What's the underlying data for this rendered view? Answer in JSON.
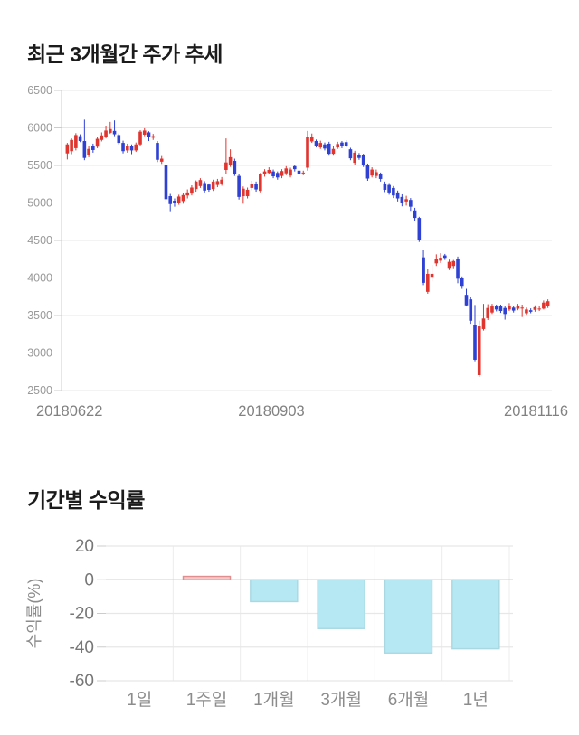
{
  "section_price": {
    "title": "최근 3개월간 주가 추세"
  },
  "section_returns": {
    "title": "기간별 수익률"
  },
  "chart_data": [
    {
      "type": "candlestick",
      "title": "최근 3개월간 주가 추세",
      "ylim": [
        2500,
        6500
      ],
      "y_ticks": [
        6500,
        6000,
        5500,
        5000,
        4500,
        4000,
        3500,
        3000,
        2500
      ],
      "x_labels": [
        "20180622",
        "20180903",
        "20181116"
      ],
      "grid": true,
      "colors": {
        "up": "#e0342f",
        "down": "#2e41d3",
        "grid": "#e7e7e7",
        "axis": "#cccccc",
        "tick_text": "#999999",
        "date_text": "#818181"
      },
      "candles_ohlc": [
        [
          5660,
          5800,
          5580,
          5780
        ],
        [
          5690,
          5860,
          5650,
          5840
        ],
        [
          5730,
          5930,
          5700,
          5905
        ],
        [
          5890,
          5915,
          5810,
          5825
        ],
        [
          5825,
          6110,
          5570,
          5600
        ],
        [
          5640,
          5760,
          5610,
          5720
        ],
        [
          5755,
          5790,
          5670,
          5705
        ],
        [
          5750,
          5880,
          5730,
          5855
        ],
        [
          5840,
          5940,
          5820,
          5900
        ],
        [
          5885,
          6030,
          5860,
          5965
        ],
        [
          5935,
          6080,
          5920,
          5985
        ],
        [
          5960,
          6100,
          5890,
          5915
        ],
        [
          5905,
          5925,
          5780,
          5800
        ],
        [
          5800,
          5830,
          5660,
          5690
        ],
        [
          5700,
          5790,
          5670,
          5760
        ],
        [
          5760,
          5780,
          5650,
          5700
        ],
        [
          5700,
          5805,
          5680,
          5780
        ],
        [
          5780,
          5970,
          5760,
          5950
        ],
        [
          5910,
          5995,
          5890,
          5965
        ],
        [
          5940,
          5955,
          5825,
          5885
        ],
        [
          5870,
          5920,
          5840,
          5890
        ],
        [
          5800,
          5825,
          5545,
          5575
        ],
        [
          5550,
          5625,
          5520,
          5590
        ],
        [
          5510,
          5525,
          5020,
          5050
        ],
        [
          5090,
          5120,
          4890,
          4985
        ],
        [
          5030,
          5060,
          4950,
          5000
        ],
        [
          5005,
          5110,
          4975,
          5085
        ],
        [
          5025,
          5130,
          4990,
          5105
        ],
        [
          5100,
          5180,
          5060,
          5140
        ],
        [
          5125,
          5235,
          5100,
          5205
        ],
        [
          5185,
          5300,
          5150,
          5285
        ],
        [
          5225,
          5330,
          5200,
          5305
        ],
        [
          5265,
          5290,
          5140,
          5165
        ],
        [
          5245,
          5260,
          5150,
          5175
        ],
        [
          5185,
          5310,
          5160,
          5285
        ],
        [
          5240,
          5320,
          5210,
          5290
        ],
        [
          5260,
          5345,
          5230,
          5310
        ],
        [
          5440,
          5860,
          5380,
          5540
        ],
        [
          5500,
          5715,
          5480,
          5610
        ],
        [
          5560,
          5590,
          5360,
          5380
        ],
        [
          5360,
          5385,
          5045,
          5080
        ],
        [
          5090,
          5220,
          4990,
          5190
        ],
        [
          5090,
          5205,
          5060,
          5175
        ],
        [
          5200,
          5295,
          5170,
          5250
        ],
        [
          5250,
          5285,
          5150,
          5180
        ],
        [
          5160,
          5400,
          5140,
          5380
        ],
        [
          5380,
          5450,
          5350,
          5420
        ],
        [
          5400,
          5475,
          5380,
          5440
        ],
        [
          5420,
          5445,
          5330,
          5355
        ],
        [
          5400,
          5420,
          5310,
          5340
        ],
        [
          5360,
          5450,
          5330,
          5425
        ],
        [
          5395,
          5490,
          5370,
          5460
        ],
        [
          5365,
          5470,
          5340,
          5445
        ],
        [
          5490,
          5510,
          5420,
          5450
        ],
        [
          5430,
          5455,
          5330,
          5390
        ],
        [
          5400,
          5430,
          5370,
          5405
        ],
        [
          5470,
          5960,
          5430,
          5875
        ],
        [
          5820,
          5925,
          5800,
          5880
        ],
        [
          5825,
          5845,
          5740,
          5765
        ],
        [
          5740,
          5830,
          5720,
          5800
        ],
        [
          5780,
          5805,
          5700,
          5725
        ],
        [
          5790,
          5815,
          5630,
          5655
        ],
        [
          5655,
          5755,
          5630,
          5720
        ],
        [
          5740,
          5815,
          5720,
          5785
        ],
        [
          5805,
          5825,
          5730,
          5755
        ],
        [
          5810,
          5835,
          5740,
          5765
        ],
        [
          5715,
          5735,
          5570,
          5595
        ],
        [
          5535,
          5695,
          5510,
          5670
        ],
        [
          5640,
          5665,
          5575,
          5600
        ],
        [
          5635,
          5655,
          5480,
          5500
        ],
        [
          5510,
          5525,
          5295,
          5325
        ],
        [
          5365,
          5475,
          5340,
          5445
        ],
        [
          5360,
          5445,
          5330,
          5410
        ],
        [
          5380,
          5405,
          5285,
          5320
        ],
        [
          5260,
          5285,
          5145,
          5175
        ],
        [
          5240,
          5265,
          5110,
          5140
        ],
        [
          5200,
          5225,
          5065,
          5100
        ],
        [
          5140,
          5165,
          5020,
          5060
        ],
        [
          5080,
          5115,
          4955,
          5000
        ],
        [
          5020,
          5095,
          4965,
          5050
        ],
        [
          5040,
          5065,
          4895,
          4950
        ],
        [
          4900,
          4935,
          4765,
          4800
        ],
        [
          4800,
          4815,
          4480,
          4510
        ],
        [
          4275,
          4370,
          3905,
          3935
        ],
        [
          3815,
          4115,
          3790,
          4055
        ],
        [
          4015,
          4175,
          3955,
          4055
        ],
        [
          4195,
          4315,
          4160,
          4255
        ],
        [
          4230,
          4330,
          4200,
          4270
        ],
        [
          4300,
          4320,
          4240,
          4268
        ],
        [
          4135,
          4245,
          4105,
          4215
        ],
        [
          4160,
          4240,
          4130,
          4225
        ],
        [
          4250,
          4285,
          3930,
          3990
        ],
        [
          3995,
          4020,
          3855,
          3895
        ],
        [
          3775,
          3855,
          3620,
          3635
        ],
        [
          3715,
          3745,
          3390,
          3430
        ],
        [
          3370,
          3640,
          2890,
          2910
        ],
        [
          2705,
          3430,
          2680,
          3355
        ],
        [
          3320,
          3655,
          3300,
          3460
        ],
        [
          3465,
          3650,
          3440,
          3600
        ],
        [
          3540,
          3655,
          3520,
          3620
        ],
        [
          3620,
          3645,
          3555,
          3580
        ],
        [
          3625,
          3645,
          3535,
          3560
        ],
        [
          3600,
          3625,
          3445,
          3520
        ],
        [
          3580,
          3665,
          3560,
          3625
        ],
        [
          3605,
          3625,
          3540,
          3565
        ],
        [
          3590,
          3655,
          3570,
          3630
        ],
        [
          3595,
          3645,
          3480,
          3605
        ],
        [
          3530,
          3605,
          3510,
          3580
        ],
        [
          3570,
          3595,
          3530,
          3550
        ],
        [
          3575,
          3635,
          3550,
          3610
        ],
        [
          3590,
          3625,
          3560,
          3592
        ],
        [
          3592,
          3700,
          3580,
          3672
        ],
        [
          3625,
          3715,
          3600,
          3690
        ]
      ]
    },
    {
      "type": "bar",
      "title": "기간별 수익률",
      "categories": [
        "1일",
        "1주일",
        "1개월",
        "3개월",
        "6개월",
        "1년"
      ],
      "values": [
        0,
        2,
        -13,
        -29,
        -43.5,
        -41
      ],
      "ylabel": "수익률(%)",
      "xlabel": "",
      "y_ticks": [
        20,
        0,
        -20,
        -40,
        -60
      ],
      "ylim": [
        -60,
        20
      ],
      "grid": true,
      "colors": {
        "positive_fill": "#f5c9ca",
        "positive_border": "#e08e8e",
        "negative_fill": "#b5e8f2",
        "negative_border": "#a9d8e2",
        "grid": "#e7e7e7",
        "zero_line": "#c0c0c0",
        "tick_text": "#777777",
        "label_text": "#8c8c8c"
      }
    }
  ]
}
